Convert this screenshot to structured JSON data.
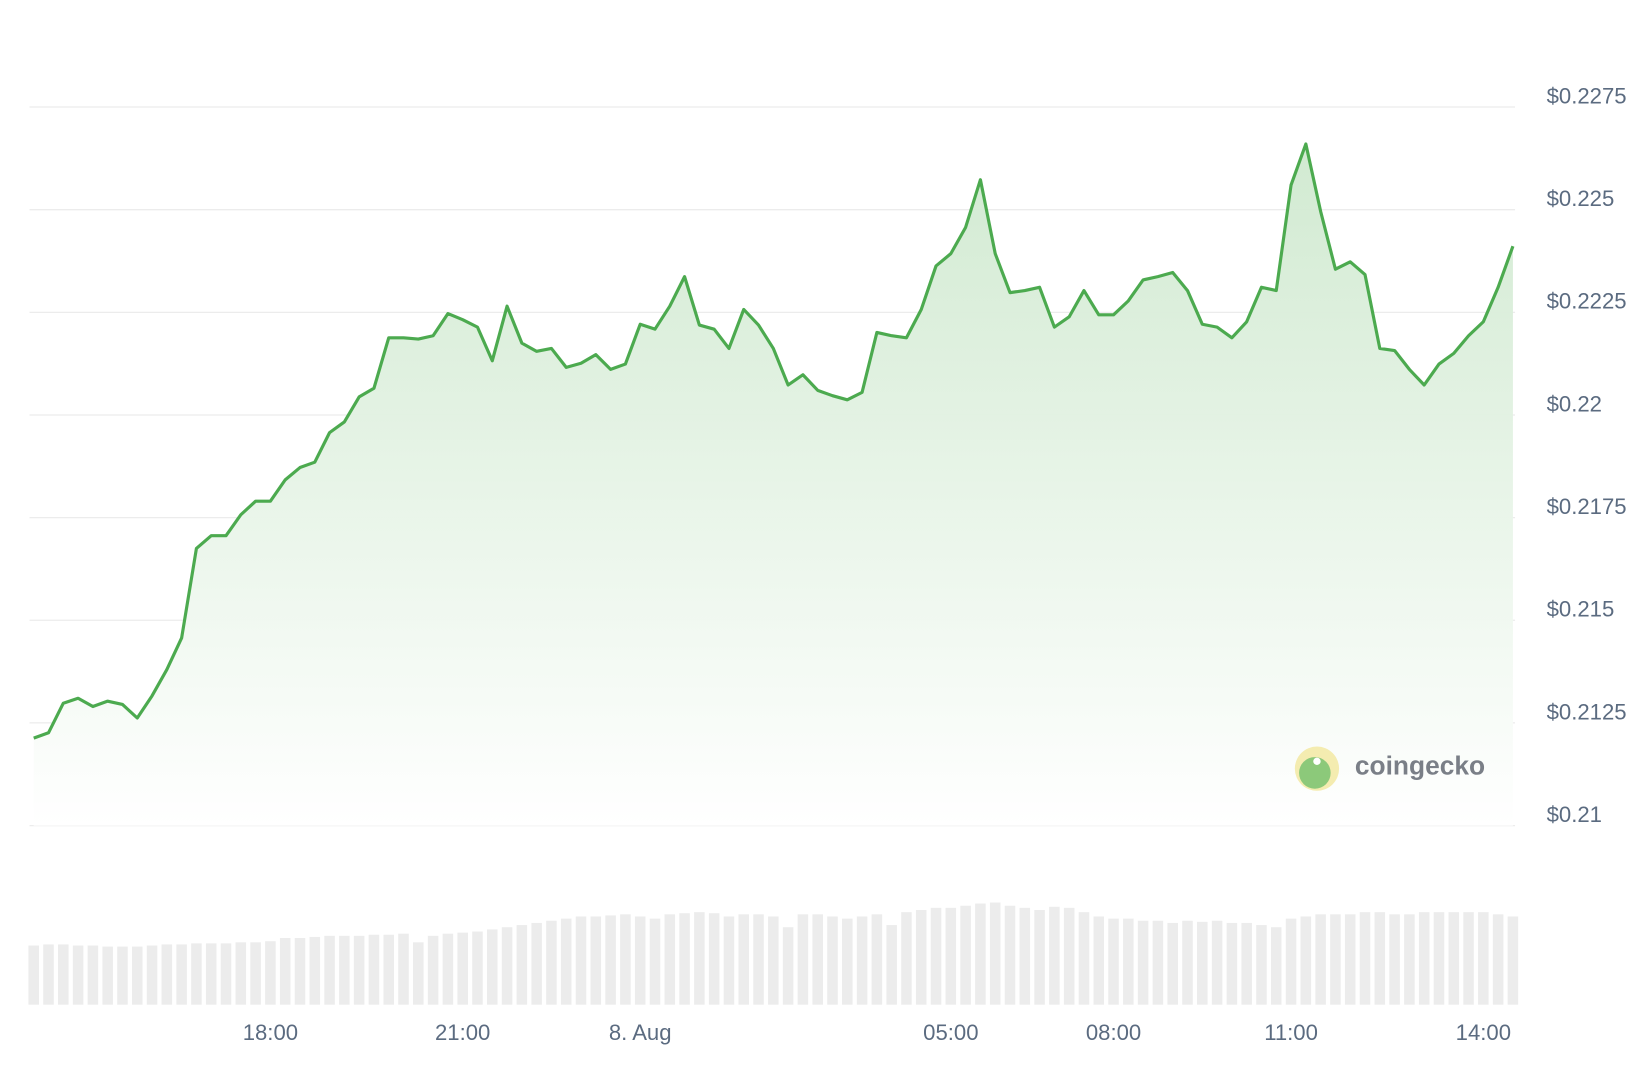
{
  "chart_data": {
    "type": "line",
    "watermark": "coingecko",
    "categories": [
      null,
      null,
      null,
      null,
      null,
      null,
      null,
      null,
      null,
      null,
      null,
      null,
      null,
      null,
      null,
      null,
      "18:00",
      null,
      null,
      null,
      null,
      null,
      null,
      null,
      null,
      null,
      null,
      null,
      null,
      "21:00",
      null,
      null,
      null,
      null,
      null,
      null,
      null,
      null,
      null,
      null,
      null,
      "8. Aug",
      null,
      null,
      null,
      null,
      null,
      null,
      null,
      null,
      null,
      null,
      null,
      null,
      null,
      null,
      null,
      null,
      null,
      null,
      null,
      null,
      "05:00",
      null,
      null,
      null,
      null,
      null,
      null,
      null,
      null,
      null,
      null,
      "08:00",
      null,
      null,
      null,
      null,
      null,
      null,
      null,
      null,
      null,
      null,
      null,
      "11:00",
      null,
      null,
      null,
      null,
      null,
      null,
      null,
      null,
      null,
      null,
      null,
      null,
      "14:00",
      null,
      null
    ],
    "values": [
      0.21213,
      0.21226,
      0.21298,
      0.2131,
      0.2129,
      0.21303,
      0.21295,
      0.21262,
      0.21316,
      0.2138,
      0.21457,
      0.21675,
      0.21706,
      0.21706,
      0.21757,
      0.2179,
      0.2179,
      0.21842,
      0.21872,
      0.21885,
      0.21957,
      0.21983,
      0.22044,
      0.22065,
      0.22188,
      0.22188,
      0.22185,
      0.22193,
      0.22247,
      0.22232,
      0.22214,
      0.22132,
      0.22265,
      0.22175,
      0.22155,
      0.22162,
      0.22116,
      0.22126,
      0.22147,
      0.22111,
      0.22124,
      0.22221,
      0.22209,
      0.22265,
      0.22337,
      0.22219,
      0.22209,
      0.22162,
      0.22257,
      0.22219,
      0.22162,
      0.22073,
      0.22098,
      0.2206,
      0.22047,
      0.22037,
      0.22055,
      0.22201,
      0.22193,
      0.22188,
      0.22257,
      0.22363,
      0.22393,
      0.22457,
      0.22573,
      0.22393,
      0.22298,
      0.22303,
      0.22311,
      0.22214,
      0.22239,
      0.22303,
      0.22244,
      0.22244,
      0.22278,
      0.22329,
      0.22337,
      0.22347,
      0.22303,
      0.22221,
      0.22214,
      0.22188,
      0.22227,
      0.22311,
      0.22303,
      0.2256,
      0.2266,
      0.22496,
      0.22355,
      0.22373,
      0.22342,
      0.22162,
      0.22157,
      0.22111,
      0.22073,
      0.22124,
      0.2215,
      0.22193,
      0.22227,
      0.22311,
      0.22411
    ],
    "volume": [
      55,
      56,
      56,
      55,
      55,
      54,
      54,
      54,
      55,
      56,
      56,
      57,
      57,
      57,
      58,
      58,
      59,
      62,
      62,
      63,
      64,
      64,
      64,
      65,
      65,
      66,
      58,
      64,
      66,
      67,
      68,
      70,
      72,
      74,
      76,
      78,
      80,
      82,
      82,
      83,
      84,
      82,
      80,
      84,
      85,
      86,
      85,
      82,
      84,
      84,
      82,
      72,
      84,
      84,
      82,
      80,
      82,
      84,
      74,
      86,
      88,
      90,
      90,
      92,
      94,
      95,
      92,
      90,
      88,
      91,
      90,
      86,
      82,
      80,
      80,
      78,
      78,
      76,
      78,
      77,
      78,
      76,
      76,
      74,
      72,
      80,
      82,
      84,
      84,
      84,
      86,
      86,
      84,
      84,
      86,
      86,
      86,
      86,
      86,
      84,
      82
    ],
    "color": "#4caa4f",
    "volume_color": "#ececec",
    "ylim": [
      0.21,
      0.2275
    ],
    "yticks": [
      {
        "value": 0.21,
        "label": "$0.21"
      },
      {
        "value": 0.2125,
        "label": "$0.2125"
      },
      {
        "value": 0.215,
        "label": "$0.215"
      },
      {
        "value": 0.2175,
        "label": "$0.2175"
      },
      {
        "value": 0.22,
        "label": "$0.22"
      },
      {
        "value": 0.2225,
        "label": "$0.2225"
      },
      {
        "value": 0.225,
        "label": "$0.225"
      },
      {
        "value": 0.2275,
        "label": "$0.2275"
      }
    ],
    "grid": true
  }
}
